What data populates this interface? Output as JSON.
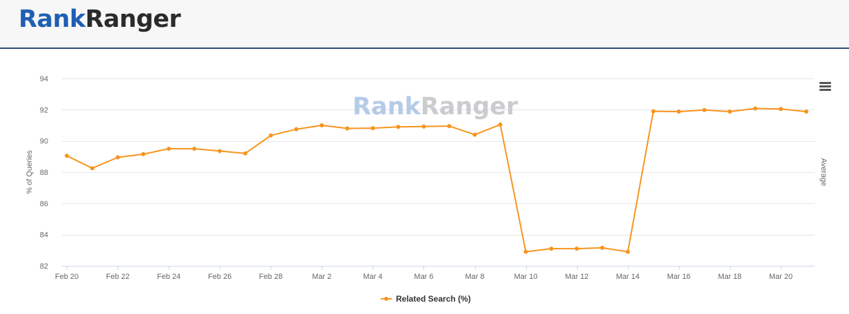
{
  "header": {
    "logo_part1": "Rank",
    "logo_part2": "Ranger",
    "logo_color1": "#1f5fb5",
    "logo_color2": "#2b2b2b",
    "divider_color": "#2f4a7a"
  },
  "watermark": {
    "part1": "Rank",
    "part2": "Ranger"
  },
  "chart_menu": {
    "icon": "hamburger-menu-icon"
  },
  "chart_data": {
    "type": "line",
    "title": "",
    "xlabel": "",
    "ylabel": "% of Queries",
    "secondary_ylabel": "Average",
    "ylim": [
      82,
      94
    ],
    "yticks": [
      82,
      84,
      86,
      88,
      90,
      92,
      94
    ],
    "grid": true,
    "legend_placement": "bottom-center",
    "x": [
      "Feb 20",
      "Feb 21",
      "Feb 22",
      "Feb 23",
      "Feb 24",
      "Feb 25",
      "Feb 26",
      "Feb 27",
      "Feb 28",
      "Mar 1",
      "Mar 2",
      "Mar 3",
      "Mar 4",
      "Mar 5",
      "Mar 6",
      "Mar 7",
      "Mar 8",
      "Mar 9",
      "Mar 10",
      "Mar 11",
      "Mar 12",
      "Mar 13",
      "Mar 14",
      "Mar 15",
      "Mar 16",
      "Mar 17",
      "Mar 18",
      "Mar 19",
      "Mar 20",
      "Mar 21"
    ],
    "xtick_labels": [
      "Feb 20",
      "",
      "Feb 22",
      "",
      "Feb 24",
      "",
      "Feb 26",
      "",
      "Feb 28",
      "",
      "Mar 2",
      "",
      "Mar 4",
      "",
      "Mar 6",
      "",
      "Mar 8",
      "",
      "Mar 10",
      "",
      "Mar 12",
      "",
      "Mar 14",
      "",
      "Mar 16",
      "",
      "Mar 18",
      "",
      "Mar 20",
      ""
    ],
    "series": [
      {
        "name": "Related Search (%)",
        "color": "#f7941d",
        "values": [
          89.05,
          88.25,
          88.95,
          89.15,
          89.5,
          89.5,
          89.35,
          89.2,
          90.35,
          90.75,
          91.0,
          90.8,
          90.82,
          90.9,
          90.92,
          90.95,
          90.4,
          91.05,
          82.9,
          83.1,
          83.1,
          83.15,
          82.9,
          91.9,
          91.88,
          91.98,
          91.88,
          92.08,
          92.05,
          91.88
        ]
      }
    ]
  }
}
